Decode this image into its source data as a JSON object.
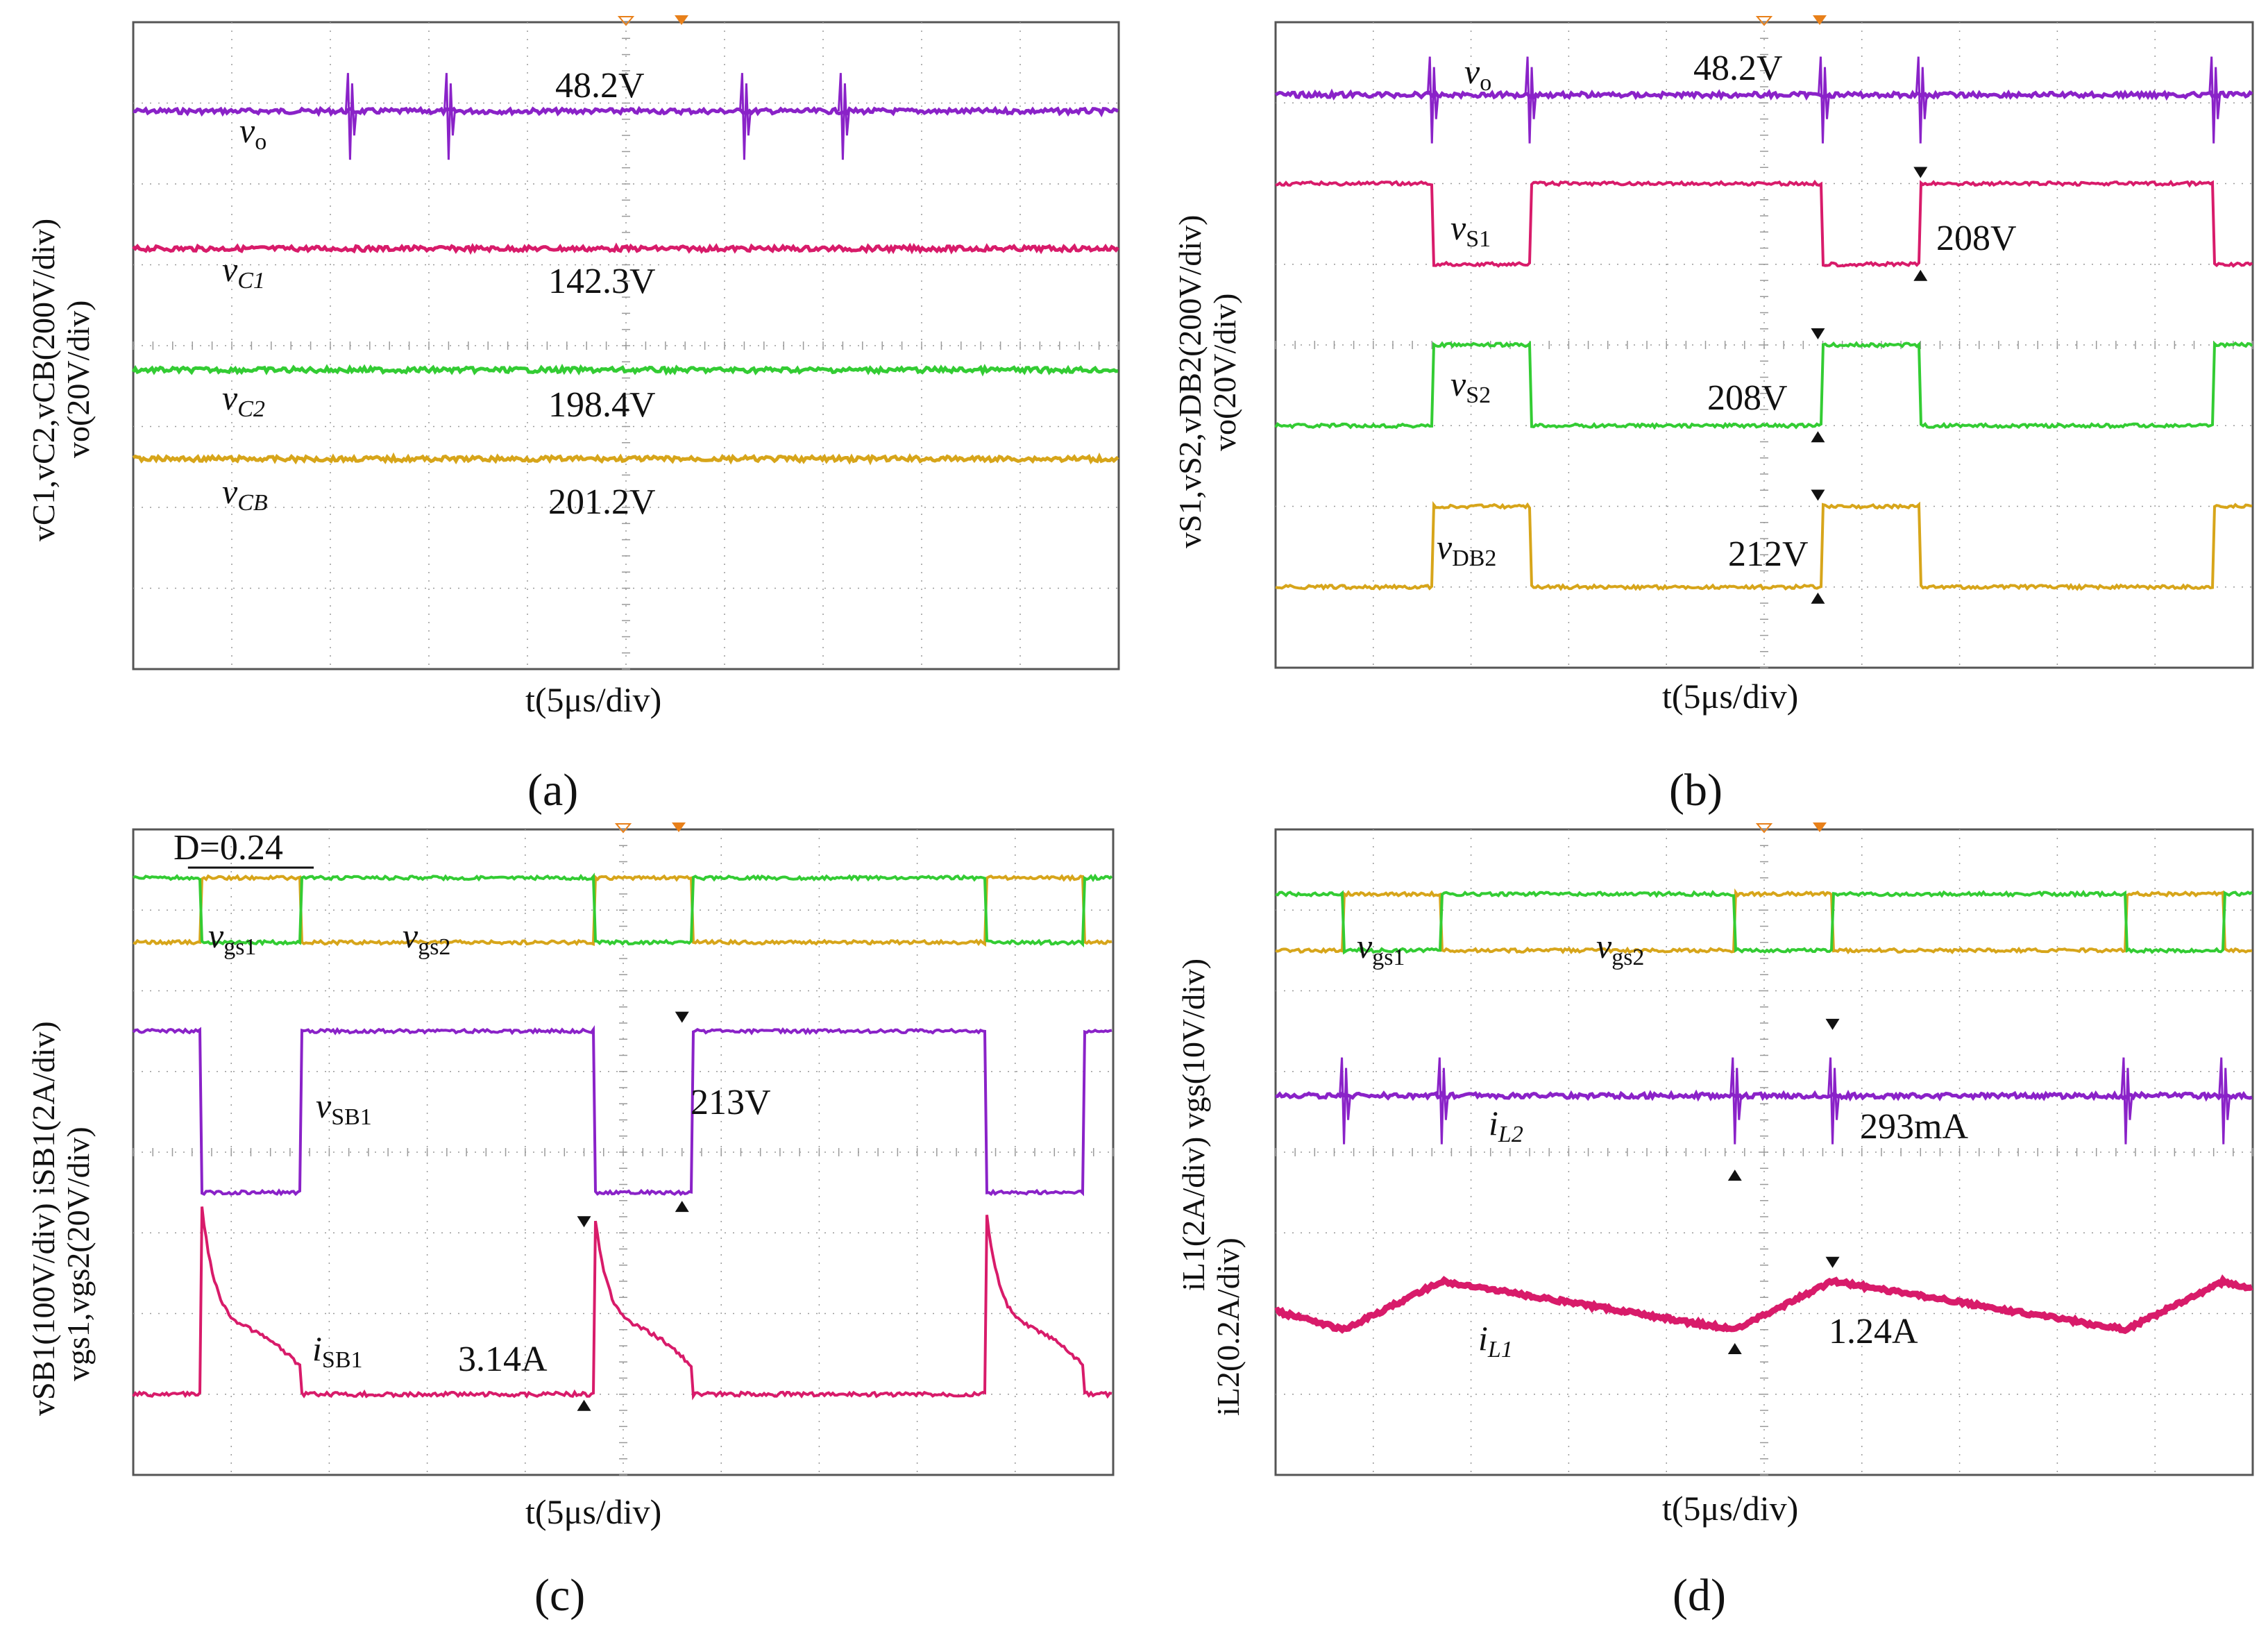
{
  "colors": {
    "purple": "#8a22c8",
    "pink": "#d81b6a",
    "green": "#33cc33",
    "gold": "#d7a51a",
    "grid": "#9a9a9a",
    "frame": "#555555"
  },
  "chart_data": [
    {
      "type": "line",
      "caption": "(a)",
      "xlabel": "t(5μs/div)",
      "ylabel_lines": [
        "v_C1, v_C2, v_CB(200V/div)",
        "v_o(20V/div)"
      ],
      "ylabel_text": [
        "vC1,vC2,vCB(200V/div)",
        "vo(20V/div)"
      ],
      "x_div": 10,
      "y_div": 8,
      "series": [
        {
          "name": "vo",
          "label": "v_o",
          "color": "purple",
          "level_div": 1.1,
          "value_label": "48.2V",
          "spikes_div": [
            2.2,
            3.2,
            6.2,
            7.2
          ]
        },
        {
          "name": "vC1",
          "label": "v_C1",
          "color": "pink",
          "level_div": 2.8,
          "value_label": "142.3V"
        },
        {
          "name": "vC2",
          "label": "v_C2",
          "color": "green",
          "level_div": 4.3,
          "value_label": "198.4V"
        },
        {
          "name": "vCB",
          "label": "v_CB",
          "color": "gold",
          "level_div": 5.4,
          "value_label": "201.2V"
        }
      ]
    },
    {
      "type": "line",
      "caption": "(b)",
      "xlabel": "t(5μs/div)",
      "ylabel_text": [
        "vS1,vS2,vDB2(200V/div)",
        "vo(20V/div)"
      ],
      "x_div": 10,
      "y_div": 8,
      "series": [
        {
          "name": "vo",
          "label": "v_o",
          "color": "purple",
          "level_div": 0.9,
          "value_label": "48.2V",
          "spikes_div": [
            1.6,
            2.6,
            5.6,
            6.6,
            9.6
          ]
        },
        {
          "name": "vS1",
          "label": "v_S1",
          "color": "pink",
          "high_div": 2.0,
          "low_div": 3.0,
          "pulses_low_div": [
            [
              1.6,
              2.6
            ],
            [
              5.6,
              6.6
            ],
            [
              9.6,
              10.0
            ]
          ],
          "value_label": "208V"
        },
        {
          "name": "vS2",
          "label": "v_S2",
          "color": "green",
          "high_div": 4.0,
          "low_div": 5.0,
          "pulses_high_div": [
            [
              1.6,
              2.6
            ],
            [
              5.6,
              6.6
            ],
            [
              9.6,
              10.0
            ]
          ],
          "value_label": "208V"
        },
        {
          "name": "vDB2",
          "label": "v_DB2",
          "color": "gold",
          "high_div": 6.0,
          "low_div": 7.0,
          "pulses_high_div": [
            [
              1.6,
              2.6
            ],
            [
              5.6,
              6.6
            ],
            [
              9.6,
              10.0
            ]
          ],
          "value_label": "212V"
        }
      ]
    },
    {
      "type": "line",
      "caption": "(c)",
      "xlabel": "t(5μs/div)",
      "ylabel_text": [
        "vSB1(100V/div) iSB1(2A/div)",
        "vgs1,vgs2(20V/div)"
      ],
      "x_div": 10,
      "y_div": 8,
      "annotation": "D=0.24",
      "series": [
        {
          "name": "vgs1",
          "label": "v_gs1",
          "color": "gold",
          "high_div": 0.6,
          "low_div": 1.4,
          "pulses_high_div": [
            [
              0.7,
              1.7
            ],
            [
              4.7,
              5.7
            ],
            [
              8.7,
              9.7
            ]
          ]
        },
        {
          "name": "vgs2",
          "label": "v_gs2",
          "color": "green",
          "high_div": 0.6,
          "low_div": 1.4,
          "pulses_low_div": [
            [
              0.7,
              1.7
            ],
            [
              4.7,
              5.7
            ],
            [
              8.7,
              9.7
            ]
          ]
        },
        {
          "name": "vSB1",
          "label": "v_SB1",
          "color": "purple",
          "high_div": 2.5,
          "low_div": 4.5,
          "pulses_low_div": [
            [
              0.7,
              1.7
            ],
            [
              4.7,
              5.7
            ],
            [
              8.7,
              9.7
            ]
          ],
          "value_label": "213V"
        },
        {
          "name": "iSB1",
          "label": "i_SB1",
          "color": "pink",
          "base_div": 7.0,
          "peak_div": 5.0,
          "pulses_div": [
            [
              0.7,
              1.7
            ],
            [
              4.7,
              5.7
            ],
            [
              8.7,
              9.7
            ]
          ],
          "value_label": "3.14A"
        }
      ]
    },
    {
      "type": "line",
      "caption": "(d)",
      "xlabel": "t(5μs/div)",
      "ylabel_text": [
        "iL1(2A/div) vgs(10V/div)",
        "iL2(0.2A/div)"
      ],
      "x_div": 10,
      "y_div": 8,
      "series": [
        {
          "name": "vgs1",
          "label": "v_gs1",
          "color": "gold",
          "high_div": 0.8,
          "low_div": 1.5,
          "pulses_high_div": [
            [
              0.7,
              1.7
            ],
            [
              4.7,
              5.7
            ],
            [
              8.7,
              9.7
            ]
          ]
        },
        {
          "name": "vgs2",
          "label": "v_gs2",
          "color": "green",
          "high_div": 0.8,
          "low_div": 1.5,
          "pulses_low_div": [
            [
              0.7,
              1.7
            ],
            [
              4.7,
              5.7
            ],
            [
              8.7,
              9.7
            ]
          ]
        },
        {
          "name": "iL2",
          "label": "i_L2",
          "color": "purple",
          "level_div": 3.3,
          "spikes_div": [
            0.7,
            1.7,
            4.7,
            5.7,
            8.7,
            9.7
          ],
          "value_label": "293mA"
        },
        {
          "name": "iL1",
          "label": "i_L1",
          "color": "pink",
          "valleys_div": [
            0.7,
            4.7,
            8.7
          ],
          "peaks_div": [
            1.7,
            5.7,
            9.7
          ],
          "low_div": 6.2,
          "high_div": 5.6,
          "value_label": "1.24A"
        }
      ]
    }
  ],
  "strings": {
    "a_vo": "v",
    "a_vo_sub": "o",
    "a_vC1": "v",
    "a_vC1_sub": "C1",
    "a_vC2": "v",
    "a_vC2_sub": "C2",
    "a_vCB": "v",
    "a_vCB_sub": "CB",
    "b_vo": "v",
    "b_vo_sub": "o",
    "b_vS1": "v",
    "b_vS1_sub": "S1",
    "b_vS2": "v",
    "b_vS2_sub": "S2",
    "b_vDB2": "v",
    "b_vDB2_sub": "DB2",
    "c_vgs1": "v",
    "c_vgs1_sub": "gs1",
    "c_vgs2": "v",
    "c_vgs2_sub": "gs2",
    "c_vSB1": "v",
    "c_vSB1_sub": "SB1",
    "c_iSB1": "i",
    "c_iSB1_sub": "SB1",
    "d_vgs1": "v",
    "d_vgs1_sub": "gs1",
    "d_vgs2": "v",
    "d_vgs2_sub": "gs2",
    "d_iL2": "i",
    "d_iL2_sub": "L2",
    "d_iL1": "i",
    "d_iL1_sub": "L1"
  }
}
